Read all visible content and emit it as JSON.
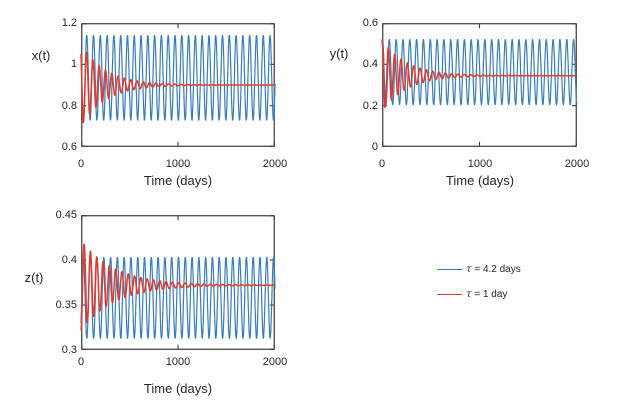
{
  "colors": {
    "series_blue": "#377dba",
    "series_red": "#e23a2e",
    "axis": "#3a3a3a",
    "text": "#262626",
    "background": "#ffffff"
  },
  "legend": {
    "position": "bottom-right-outside",
    "items": [
      {
        "symbol": "τ",
        "rest": " = 4.2 days",
        "label": "τ = 4.2 days",
        "color": "#377dba"
      },
      {
        "symbol": "τ",
        "rest": " = 1 day",
        "label": "τ = 1 day",
        "color": "#e23a2e"
      }
    ]
  },
  "chart_data": [
    {
      "id": "x",
      "type": "line",
      "ylabel": "x(t)",
      "xlabel": "Time (days)",
      "grid": false,
      "xlim": [
        0,
        2000
      ],
      "ylim": [
        0.6,
        1.2
      ],
      "xticks": [
        0,
        1000,
        2000
      ],
      "xticklabels": [
        "0",
        "1000",
        "2000"
      ],
      "yticks": [
        0.6,
        0.8,
        1,
        1.2
      ],
      "yticklabels": [
        "0.6",
        "0.8",
        "1",
        "1.2"
      ],
      "series": [
        {
          "id": "tau-4p2-days",
          "name": "τ = 4.2 days",
          "color": "#377dba",
          "behavior": "sustained-oscillation",
          "equilibrium": 0.935,
          "amplitude": 0.205,
          "period_days": 70,
          "peak_t": 59,
          "decay_tau_days": null,
          "stroke_width": 1.2
        },
        {
          "id": "tau-1-day",
          "name": "τ = 1 day",
          "color": "#e23a2e",
          "behavior": "damped-oscillation",
          "equilibrium": 0.9,
          "amplitude": 0.2,
          "period_days": 65,
          "peak_t": -7.5,
          "decay_tau_days": 250,
          "stroke_width": 1.5
        }
      ]
    },
    {
      "id": "y",
      "type": "line",
      "ylabel": "y(t)",
      "xlabel": "Time (days)",
      "grid": false,
      "xlim": [
        0,
        2000
      ],
      "ylim": [
        0,
        0.6
      ],
      "xticks": [
        0,
        1000,
        2000
      ],
      "xticklabels": [
        "0",
        "1000",
        "2000"
      ],
      "yticks": [
        0,
        0.2,
        0.4,
        0.6
      ],
      "yticklabels": [
        "0",
        "0.2",
        "0.4",
        "0.6"
      ],
      "series": [
        {
          "id": "tau-4p2-days",
          "name": "τ = 4.2 days",
          "color": "#377dba",
          "behavior": "sustained-oscillation",
          "equilibrium": 0.3625,
          "amplitude": 0.1575,
          "period_days": 70,
          "peak_t": 5,
          "decay_tau_days": null,
          "stroke_width": 1.2
        },
        {
          "id": "tau-1-day",
          "name": "τ = 1 day",
          "color": "#e23a2e",
          "behavior": "damped-oscillation",
          "equilibrium": 0.345,
          "amplitude": 0.175,
          "period_days": 65,
          "peak_t": 0,
          "decay_tau_days": 250,
          "stroke_width": 1.5
        }
      ]
    },
    {
      "id": "z",
      "type": "line",
      "ylabel": "z(t)",
      "xlabel": "Time (days)",
      "grid": false,
      "xlim": [
        0,
        2000
      ],
      "ylim": [
        0.3,
        0.45
      ],
      "xticks": [
        0,
        1000,
        2000
      ],
      "xticklabels": [
        "0",
        "1000",
        "2000"
      ],
      "yticks": [
        0.3,
        0.35,
        0.4,
        0.45
      ],
      "yticklabels": [
        "0.3",
        "0.35",
        "0.4",
        "0.45"
      ],
      "series": [
        {
          "id": "tau-4p2-days",
          "name": "τ = 4.2 days",
          "color": "#377dba",
          "behavior": "sustained-oscillation",
          "equilibrium": 0.358,
          "amplitude": 0.045,
          "period_days": 70,
          "peak_t": 25,
          "decay_tau_days": null,
          "stroke_width": 1.2
        },
        {
          "id": "tau-1-day",
          "name": "τ = 1 day",
          "color": "#e23a2e",
          "behavior": "damped-oscillation",
          "equilibrium": 0.372,
          "amplitude": 0.05,
          "period_days": 65,
          "peak_t": 32.5,
          "decay_tau_days": 350,
          "stroke_width": 1.5
        }
      ]
    }
  ]
}
